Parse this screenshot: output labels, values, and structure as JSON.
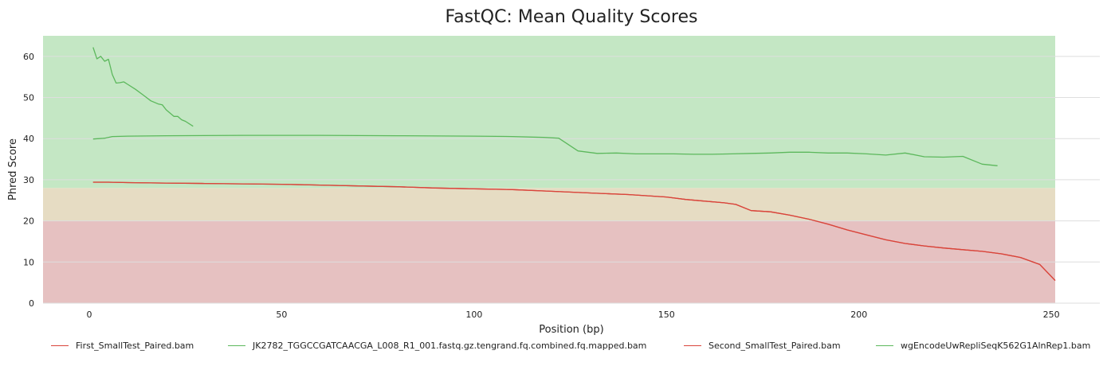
{
  "chart_data": {
    "type": "line",
    "title": "FastQC: Mean Quality Scores",
    "xlabel": "Position (bp)",
    "ylabel": "Phred Score",
    "xlim": [
      -12,
      251
    ],
    "ylim": [
      0,
      65
    ],
    "xticks": [
      0,
      50,
      100,
      150,
      200,
      250
    ],
    "yticks": [
      0,
      10,
      20,
      30,
      40,
      50,
      60
    ],
    "grid": "horizontal",
    "legend_position": "bottom",
    "bands": [
      {
        "from": 0,
        "to": 20,
        "color": "#e6c1c1",
        "meaning": "poor"
      },
      {
        "from": 20,
        "to": 28,
        "color": "#e6dcc3",
        "meaning": "reasonable"
      },
      {
        "from": 28,
        "to": 65,
        "color": "#c4e7c4",
        "meaning": "good"
      }
    ],
    "series": [
      {
        "name": "First_SmallTest_Paired.bam",
        "color": "#d9453b",
        "x": [
          1,
          5,
          10,
          20,
          30,
          40,
          50,
          60,
          70,
          80,
          90,
          100,
          110,
          120,
          130,
          140,
          150,
          155,
          160,
          165,
          168,
          172,
          177,
          182,
          187,
          192,
          197,
          202,
          207,
          212,
          217,
          222,
          227,
          232,
          237,
          242,
          247,
          251
        ],
        "y": [
          29.4,
          29.4,
          29.3,
          29.2,
          29.1,
          29.0,
          28.9,
          28.7,
          28.5,
          28.3,
          28.0,
          27.8,
          27.6,
          27.2,
          26.8,
          26.4,
          25.8,
          25.2,
          24.8,
          24.4,
          24.0,
          22.5,
          22.2,
          21.4,
          20.4,
          19.2,
          17.8,
          16.6,
          15.4,
          14.5,
          13.9,
          13.4,
          13.0,
          12.6,
          12.0,
          11.1,
          9.4,
          5.5
        ]
      },
      {
        "name": "JK2782_TGGCCGATCAACGA_L008_R1_001.fastq.gz.tengrand.fq.combined.fq.mapped.bam",
        "color": "#5cb85c",
        "x": [
          1,
          4,
          6,
          10,
          20,
          40,
          60,
          80,
          100,
          110,
          118,
          122,
          127,
          132,
          137,
          142,
          147,
          152,
          157,
          162,
          167,
          172,
          177,
          182,
          187,
          192,
          197,
          202,
          207,
          212,
          217,
          222,
          227,
          232,
          236
        ],
        "y": [
          39.9,
          40.1,
          40.5,
          40.6,
          40.7,
          40.8,
          40.8,
          40.7,
          40.6,
          40.5,
          40.3,
          40.1,
          37.0,
          36.4,
          36.5,
          36.3,
          36.3,
          36.3,
          36.2,
          36.2,
          36.3,
          36.4,
          36.5,
          36.7,
          36.7,
          36.5,
          36.5,
          36.3,
          36.0,
          36.5,
          35.6,
          35.5,
          35.7,
          33.8,
          33.4
        ]
      },
      {
        "name": "Second_SmallTest_Paired.bam",
        "color": "#d9453b",
        "x": [
          1,
          5,
          10,
          20,
          30,
          40,
          50,
          60,
          70,
          80,
          90,
          100,
          110,
          120,
          130,
          140,
          150,
          155,
          160,
          165,
          168,
          172,
          177,
          182,
          187,
          192,
          197,
          202,
          207,
          212,
          217,
          222,
          227,
          232,
          237,
          242,
          247,
          251
        ],
        "y": [
          29.4,
          29.4,
          29.3,
          29.2,
          29.1,
          29.0,
          28.9,
          28.7,
          28.5,
          28.3,
          28.0,
          27.8,
          27.6,
          27.2,
          26.8,
          26.4,
          25.8,
          25.2,
          24.8,
          24.4,
          24.0,
          22.5,
          22.2,
          21.4,
          20.4,
          19.2,
          17.8,
          16.6,
          15.4,
          14.5,
          13.9,
          13.4,
          13.0,
          12.6,
          12.0,
          11.1,
          9.4,
          5.5
        ]
      },
      {
        "name": "wgEncodeUwRepliSeqK562G1AlnRep1.bam",
        "color": "#5cb85c",
        "x": [
          1,
          2,
          3,
          4,
          5,
          6,
          7,
          8,
          9,
          10,
          12,
          14,
          16,
          18,
          19,
          20,
          22,
          23,
          24,
          25,
          27
        ],
        "y": [
          62.2,
          59.4,
          60.0,
          58.8,
          59.3,
          55.6,
          53.5,
          53.6,
          53.8,
          53.2,
          52.0,
          50.6,
          49.2,
          48.4,
          48.2,
          47.0,
          45.4,
          45.4,
          44.6,
          44.2,
          43.0
        ]
      }
    ]
  }
}
